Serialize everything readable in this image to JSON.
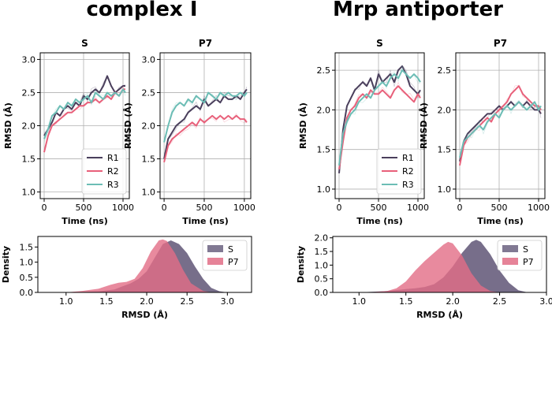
{
  "figure": {
    "left_title": "complex I",
    "right_title": "Mrp antiporter"
  },
  "colors": {
    "R1": "#4a3f5c",
    "R2": "#e8607a",
    "R3": "#6cbdb5",
    "S": "#6b6280",
    "P7": "#e26d86",
    "grid": "#b0b0b0"
  },
  "chart_data": [
    {
      "id": "c1-s",
      "type": "line",
      "title": "S",
      "xlabel": "Time (ns)",
      "ylabel": "RMSD (Å)",
      "xlim": [
        -50,
        1080
      ],
      "ylim": [
        0.9,
        3.1
      ],
      "xticks": [
        0,
        500,
        1000
      ],
      "yticks": [
        1.0,
        1.5,
        2.0,
        2.5,
        3.0
      ],
      "ytick_labels": [
        "1.0",
        "1.5",
        "2.0",
        "2.5",
        "3.0"
      ],
      "legend": [
        "R1",
        "R2",
        "R3"
      ],
      "legend_position": "lower-right",
      "series": [
        {
          "name": "R1",
          "x": [
            0,
            50,
            100,
            150,
            200,
            250,
            300,
            350,
            400,
            450,
            500,
            550,
            600,
            650,
            700,
            750,
            800,
            850,
            900,
            950,
            1000,
            1030
          ],
          "y": [
            1.85,
            1.95,
            2.05,
            2.2,
            2.15,
            2.25,
            2.3,
            2.25,
            2.35,
            2.3,
            2.45,
            2.4,
            2.5,
            2.55,
            2.5,
            2.6,
            2.75,
            2.6,
            2.5,
            2.55,
            2.6,
            2.6
          ]
        },
        {
          "name": "R2",
          "x": [
            0,
            50,
            100,
            150,
            200,
            250,
            300,
            350,
            400,
            450,
            500,
            550,
            600,
            650,
            700,
            750,
            800,
            850,
            900,
            950,
            1000,
            1030
          ],
          "y": [
            1.6,
            1.85,
            2.0,
            2.05,
            2.1,
            2.15,
            2.2,
            2.2,
            2.25,
            2.3,
            2.3,
            2.35,
            2.35,
            2.4,
            2.35,
            2.4,
            2.45,
            2.4,
            2.5,
            2.45,
            2.55,
            2.55
          ]
        },
        {
          "name": "R3",
          "x": [
            0,
            50,
            100,
            150,
            200,
            250,
            300,
            350,
            400,
            450,
            500,
            550,
            600,
            650,
            700,
            750,
            800,
            850,
            900,
            950,
            1000,
            1030
          ],
          "y": [
            1.8,
            1.95,
            2.15,
            2.2,
            2.3,
            2.25,
            2.35,
            2.3,
            2.4,
            2.35,
            2.4,
            2.45,
            2.35,
            2.5,
            2.45,
            2.4,
            2.5,
            2.45,
            2.5,
            2.45,
            2.55,
            2.5
          ]
        }
      ]
    },
    {
      "id": "c1-p7",
      "type": "line",
      "title": "P7",
      "xlabel": "Time (ns)",
      "ylabel": "RMSD (Å)",
      "xlim": [
        -50,
        1080
      ],
      "ylim": [
        0.9,
        3.1
      ],
      "xticks": [
        0,
        500,
        1000
      ],
      "yticks": [
        1.0,
        1.5,
        2.0,
        2.5,
        3.0
      ],
      "ytick_labels": [
        "1.0",
        "1.5",
        "2.0",
        "2.5",
        "3.0"
      ],
      "series": [
        {
          "name": "R1",
          "x": [
            0,
            50,
            100,
            150,
            200,
            250,
            300,
            350,
            400,
            450,
            500,
            550,
            600,
            650,
            700,
            750,
            800,
            850,
            900,
            950,
            1000,
            1030
          ],
          "y": [
            1.5,
            1.8,
            1.9,
            2.0,
            2.05,
            2.1,
            2.2,
            2.25,
            2.3,
            2.25,
            2.4,
            2.3,
            2.35,
            2.4,
            2.35,
            2.45,
            2.4,
            2.4,
            2.45,
            2.4,
            2.5,
            2.55
          ]
        },
        {
          "name": "R2",
          "x": [
            0,
            50,
            100,
            150,
            200,
            250,
            300,
            350,
            400,
            450,
            500,
            550,
            600,
            650,
            700,
            750,
            800,
            850,
            900,
            950,
            1000,
            1030
          ],
          "y": [
            1.45,
            1.7,
            1.8,
            1.85,
            1.9,
            1.95,
            2.0,
            2.05,
            2.0,
            2.1,
            2.05,
            2.1,
            2.15,
            2.1,
            2.15,
            2.1,
            2.15,
            2.1,
            2.15,
            2.1,
            2.1,
            2.05
          ]
        },
        {
          "name": "R3",
          "x": [
            0,
            50,
            100,
            150,
            200,
            250,
            300,
            350,
            400,
            450,
            500,
            550,
            600,
            650,
            700,
            750,
            800,
            850,
            900,
            950,
            1000,
            1030
          ],
          "y": [
            1.75,
            2.0,
            2.2,
            2.3,
            2.35,
            2.3,
            2.4,
            2.35,
            2.45,
            2.4,
            2.35,
            2.5,
            2.45,
            2.4,
            2.5,
            2.45,
            2.5,
            2.45,
            2.45,
            2.5,
            2.45,
            2.5
          ]
        }
      ]
    },
    {
      "id": "c1-kde",
      "type": "area",
      "title": "",
      "xlabel": "RMSD (Å)",
      "ylabel": "Density",
      "xlim": [
        0.65,
        3.3
      ],
      "ylim": [
        0,
        1.85
      ],
      "xticks": [
        1.0,
        1.5,
        2.0,
        2.5,
        3.0
      ],
      "xtick_labels": [
        "1.0",
        "1.5",
        "2.0",
        "2.5",
        "3.0"
      ],
      "yticks": [
        0.0,
        0.5,
        1.0,
        1.5
      ],
      "ytick_labels": [
        "0.0",
        "0.5",
        "1.0",
        "1.5"
      ],
      "legend": [
        "S",
        "P7"
      ],
      "legend_position": "top-right",
      "series": [
        {
          "name": "S",
          "x": [
            1.0,
            1.4,
            1.6,
            1.7,
            1.8,
            1.9,
            2.0,
            2.1,
            2.2,
            2.3,
            2.4,
            2.5,
            2.6,
            2.7,
            2.8,
            2.9,
            3.0
          ],
          "y": [
            0,
            0.03,
            0.1,
            0.2,
            0.3,
            0.45,
            0.7,
            1.15,
            1.6,
            1.72,
            1.6,
            1.3,
            0.85,
            0.45,
            0.15,
            0.04,
            0
          ]
        },
        {
          "name": "P7",
          "x": [
            1.0,
            1.2,
            1.4,
            1.55,
            1.65,
            1.75,
            1.85,
            1.95,
            2.05,
            2.15,
            2.2,
            2.25,
            2.35,
            2.45,
            2.55,
            2.7,
            2.8
          ],
          "y": [
            0,
            0.05,
            0.12,
            0.25,
            0.32,
            0.35,
            0.45,
            0.8,
            1.35,
            1.72,
            1.75,
            1.7,
            1.3,
            0.75,
            0.3,
            0.05,
            0
          ]
        }
      ]
    },
    {
      "id": "mrp-s",
      "type": "line",
      "title": "S",
      "xlabel": "Time (ns)",
      "ylabel": "RMSD (Å)",
      "xlim": [
        -50,
        1080
      ],
      "ylim": [
        0.88,
        2.72
      ],
      "xticks": [
        0,
        500,
        1000
      ],
      "yticks": [
        1.0,
        1.5,
        2.0,
        2.5
      ],
      "ytick_labels": [
        "1.0",
        "1.5",
        "2.0",
        "2.5"
      ],
      "legend": [
        "R1",
        "R2",
        "R3"
      ],
      "legend_position": "lower-right",
      "series": [
        {
          "name": "R1",
          "x": [
            0,
            50,
            100,
            150,
            200,
            250,
            300,
            350,
            400,
            450,
            500,
            550,
            600,
            650,
            700,
            750,
            800,
            850,
            900,
            950,
            1000,
            1030
          ],
          "y": [
            1.2,
            1.75,
            2.05,
            2.15,
            2.25,
            2.3,
            2.35,
            2.3,
            2.4,
            2.25,
            2.45,
            2.35,
            2.4,
            2.45,
            2.35,
            2.5,
            2.55,
            2.45,
            2.3,
            2.25,
            2.2,
            2.25
          ]
        },
        {
          "name": "R2",
          "x": [
            0,
            50,
            100,
            150,
            200,
            250,
            300,
            350,
            400,
            450,
            500,
            550,
            600,
            650,
            700,
            750,
            800,
            850,
            900,
            950,
            1000,
            1030
          ],
          "y": [
            1.25,
            1.6,
            1.9,
            2.0,
            2.05,
            2.15,
            2.2,
            2.15,
            2.25,
            2.2,
            2.2,
            2.25,
            2.2,
            2.15,
            2.25,
            2.3,
            2.25,
            2.2,
            2.15,
            2.1,
            2.2,
            2.15
          ]
        },
        {
          "name": "R3",
          "x": [
            0,
            50,
            100,
            150,
            200,
            250,
            300,
            350,
            400,
            450,
            500,
            550,
            600,
            650,
            700,
            750,
            800,
            850,
            900,
            950,
            1000,
            1030
          ],
          "y": [
            1.3,
            1.7,
            1.85,
            1.95,
            2.0,
            2.1,
            2.15,
            2.2,
            2.15,
            2.25,
            2.3,
            2.35,
            2.3,
            2.4,
            2.45,
            2.4,
            2.5,
            2.45,
            2.4,
            2.45,
            2.4,
            2.35
          ]
        }
      ]
    },
    {
      "id": "mrp-p7",
      "type": "line",
      "title": "P7",
      "xlabel": "Time (ns)",
      "ylabel": "RMSD (Å)",
      "xlim": [
        -50,
        1080
      ],
      "ylim": [
        0.88,
        2.72
      ],
      "xticks": [
        0,
        500,
        1000
      ],
      "yticks": [
        1.0,
        1.5,
        2.0,
        2.5
      ],
      "ytick_labels": [
        "1.0",
        "1.5",
        "2.0",
        "2.5"
      ],
      "series": [
        {
          "name": "R1",
          "x": [
            0,
            50,
            100,
            150,
            200,
            250,
            300,
            350,
            400,
            450,
            500,
            550,
            600,
            650,
            700,
            750,
            800,
            850,
            900,
            950,
            1000,
            1030
          ],
          "y": [
            1.35,
            1.6,
            1.7,
            1.75,
            1.8,
            1.85,
            1.9,
            1.95,
            1.95,
            2.0,
            2.05,
            2.0,
            2.05,
            2.1,
            2.05,
            2.1,
            2.05,
            2.1,
            2.05,
            2.0,
            2.0,
            1.95
          ]
        },
        {
          "name": "R2",
          "x": [
            0,
            50,
            100,
            150,
            200,
            250,
            300,
            350,
            400,
            450,
            500,
            550,
            600,
            650,
            700,
            750,
            800,
            850,
            900,
            950,
            1000,
            1030
          ],
          "y": [
            1.3,
            1.55,
            1.65,
            1.7,
            1.75,
            1.8,
            1.85,
            1.9,
            1.85,
            1.95,
            2.0,
            2.05,
            2.1,
            2.2,
            2.25,
            2.3,
            2.2,
            2.15,
            2.1,
            2.05,
            2.05,
            2.0
          ]
        },
        {
          "name": "R3",
          "x": [
            0,
            50,
            100,
            150,
            200,
            250,
            300,
            350,
            400,
            450,
            500,
            550,
            600,
            650,
            700,
            750,
            800,
            850,
            900,
            950,
            1000,
            1030
          ],
          "y": [
            1.4,
            1.6,
            1.65,
            1.7,
            1.75,
            1.8,
            1.75,
            1.85,
            1.9,
            1.95,
            1.9,
            2.0,
            2.05,
            2.0,
            2.05,
            2.1,
            2.05,
            2.0,
            2.05,
            2.1,
            2.0,
            2.05
          ]
        }
      ]
    },
    {
      "id": "mrp-kde",
      "type": "area",
      "title": "",
      "xlabel": "RMSD (Å)",
      "ylabel": "Density",
      "xlim": [
        0.72,
        3.0
      ],
      "ylim": [
        0,
        2.05
      ],
      "xticks": [
        1.0,
        1.5,
        2.0,
        2.5,
        3.0
      ],
      "xtick_labels": [
        "1.0",
        "1.5",
        "2.0",
        "2.5",
        "3.0"
      ],
      "yticks": [
        0.0,
        0.5,
        1.0,
        1.5,
        2.0
      ],
      "ytick_labels": [
        "0.0",
        "0.5",
        "1.0",
        "1.5",
        "2.0"
      ],
      "legend": [
        "S",
        "P7"
      ],
      "legend_position": "top-right",
      "series": [
        {
          "name": "S",
          "x": [
            1.0,
            1.3,
            1.5,
            1.6,
            1.7,
            1.8,
            1.9,
            2.0,
            2.1,
            2.2,
            2.25,
            2.3,
            2.4,
            2.5,
            2.6,
            2.7,
            2.8
          ],
          "y": [
            0,
            0.05,
            0.12,
            0.15,
            0.2,
            0.3,
            0.55,
            0.95,
            1.45,
            1.85,
            1.93,
            1.85,
            1.4,
            0.8,
            0.35,
            0.08,
            0
          ]
        },
        {
          "name": "P7",
          "x": [
            1.1,
            1.3,
            1.4,
            1.5,
            1.6,
            1.7,
            1.8,
            1.9,
            1.95,
            2.0,
            2.1,
            2.2,
            2.3,
            2.4,
            2.5
          ],
          "y": [
            0,
            0.05,
            0.15,
            0.4,
            0.8,
            1.15,
            1.45,
            1.75,
            1.85,
            1.8,
            1.35,
            0.7,
            0.25,
            0.05,
            0
          ]
        }
      ]
    }
  ]
}
